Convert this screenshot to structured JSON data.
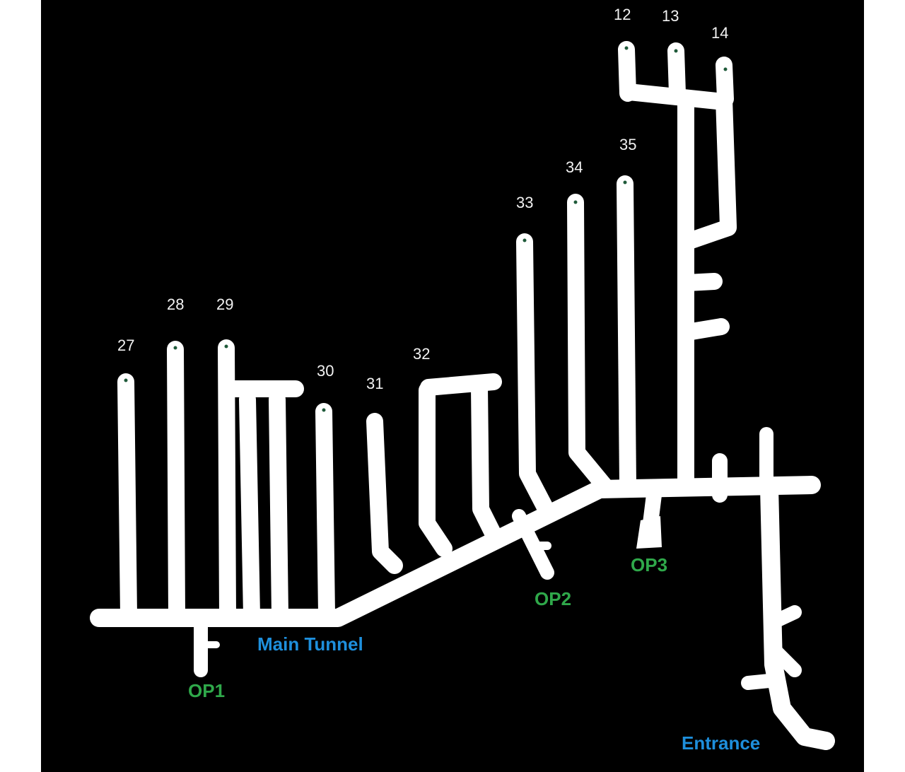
{
  "colors": {
    "background": "#000000",
    "tunnel": "#ffffff",
    "observation_point_label": "#2fa84a",
    "place_label": "#1e8fdc",
    "endpoint_dot": "#1f5a3a"
  },
  "tunnel_numbers": {
    "t12": "12",
    "t13": "13",
    "t14": "14",
    "t27": "27",
    "t28": "28",
    "t29": "29",
    "t30": "30",
    "t31": "31",
    "t32": "32",
    "t33": "33",
    "t34": "34",
    "t35": "35"
  },
  "observation_points": {
    "op1": "OP1",
    "op2": "OP2",
    "op3": "OP3"
  },
  "places": {
    "main_tunnel": "Main Tunnel",
    "entrance": "Entrance"
  }
}
